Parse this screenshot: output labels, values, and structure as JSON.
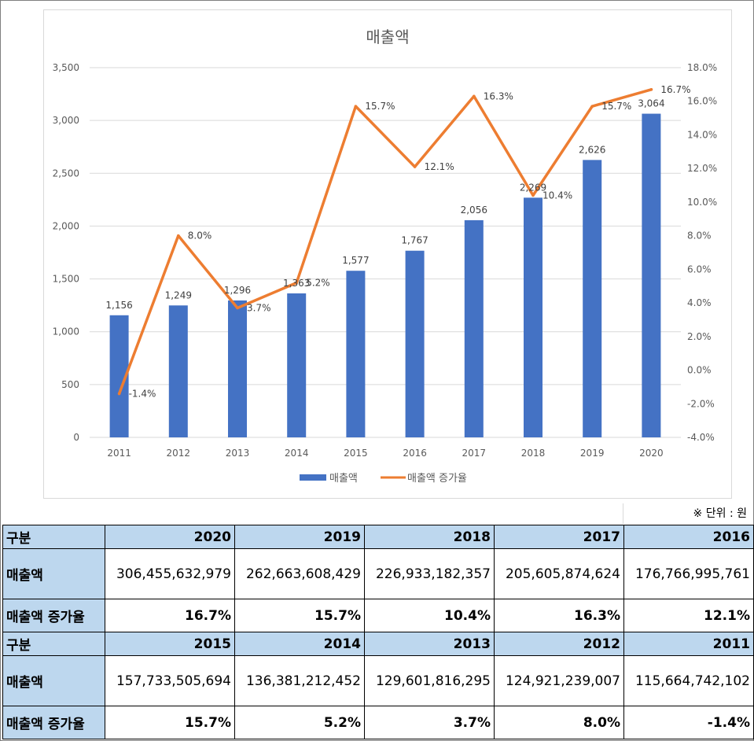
{
  "chart_data": {
    "type": "bar",
    "title": "매출액",
    "categories": [
      "2011",
      "2012",
      "2013",
      "2014",
      "2015",
      "2016",
      "2017",
      "2018",
      "2019",
      "2020"
    ],
    "series": [
      {
        "name": "매출액",
        "type": "bar",
        "axis": "left",
        "color": "#4472c4",
        "values": [
          1156,
          1249,
          1296,
          1363,
          1577,
          1767,
          2056,
          2269,
          2626,
          3064
        ],
        "labels": [
          "1,156",
          "1,249",
          "1,296",
          "1,363",
          "1,577",
          "1,767",
          "2,056",
          "2,269",
          "2,626",
          "3,064"
        ]
      },
      {
        "name": "매출액 증가율",
        "type": "line",
        "axis": "right",
        "color": "#ed7d31",
        "values": [
          -1.4,
          8.0,
          3.7,
          5.2,
          15.7,
          12.1,
          16.3,
          10.4,
          15.7,
          16.7
        ],
        "labels": [
          "-1.4%",
          "8.0%",
          "3.7%",
          "5.2%",
          "15.7%",
          "12.1%",
          "16.3%",
          "10.4%",
          "15.7%",
          "16.7%"
        ]
      }
    ],
    "y_left": {
      "lim": [
        0,
        3500
      ],
      "ticks": [
        "0",
        "500",
        "1,000",
        "1,500",
        "2,000",
        "2,500",
        "3,000",
        "3,500"
      ]
    },
    "y_right": {
      "lim": [
        -4,
        18
      ],
      "ticks": [
        "-4.0%",
        "-2.0%",
        "0.0%",
        "2.0%",
        "4.0%",
        "6.0%",
        "8.0%",
        "10.0%",
        "12.0%",
        "14.0%",
        "16.0%",
        "18.0%"
      ]
    },
    "grid": true,
    "legend": "bottom"
  },
  "unit_note": "※ 단위 : 원",
  "table": {
    "header_label": "구분",
    "rows": [
      {
        "years": [
          "2020",
          "2019",
          "2018",
          "2017",
          "2016"
        ],
        "sales_label": "매출액",
        "sales": [
          "306,455,632,979",
          "262,663,608,429",
          "226,933,182,357",
          "205,605,874,624",
          "176,766,995,761"
        ],
        "growth_label": "매출액 증가율",
        "growth": [
          "16.7%",
          "15.7%",
          "10.4%",
          "16.3%",
          "12.1%"
        ]
      },
      {
        "years": [
          "2015",
          "2014",
          "2013",
          "2012",
          "2011"
        ],
        "sales_label": "매출액",
        "sales": [
          "157,733,505,694",
          "136,381,212,452",
          "129,601,816,295",
          "124,921,239,007",
          "115,664,742,102"
        ],
        "growth_label": "매출액 증가율",
        "growth": [
          "15.7%",
          "5.2%",
          "3.7%",
          "8.0%",
          "-1.4%"
        ]
      }
    ]
  }
}
